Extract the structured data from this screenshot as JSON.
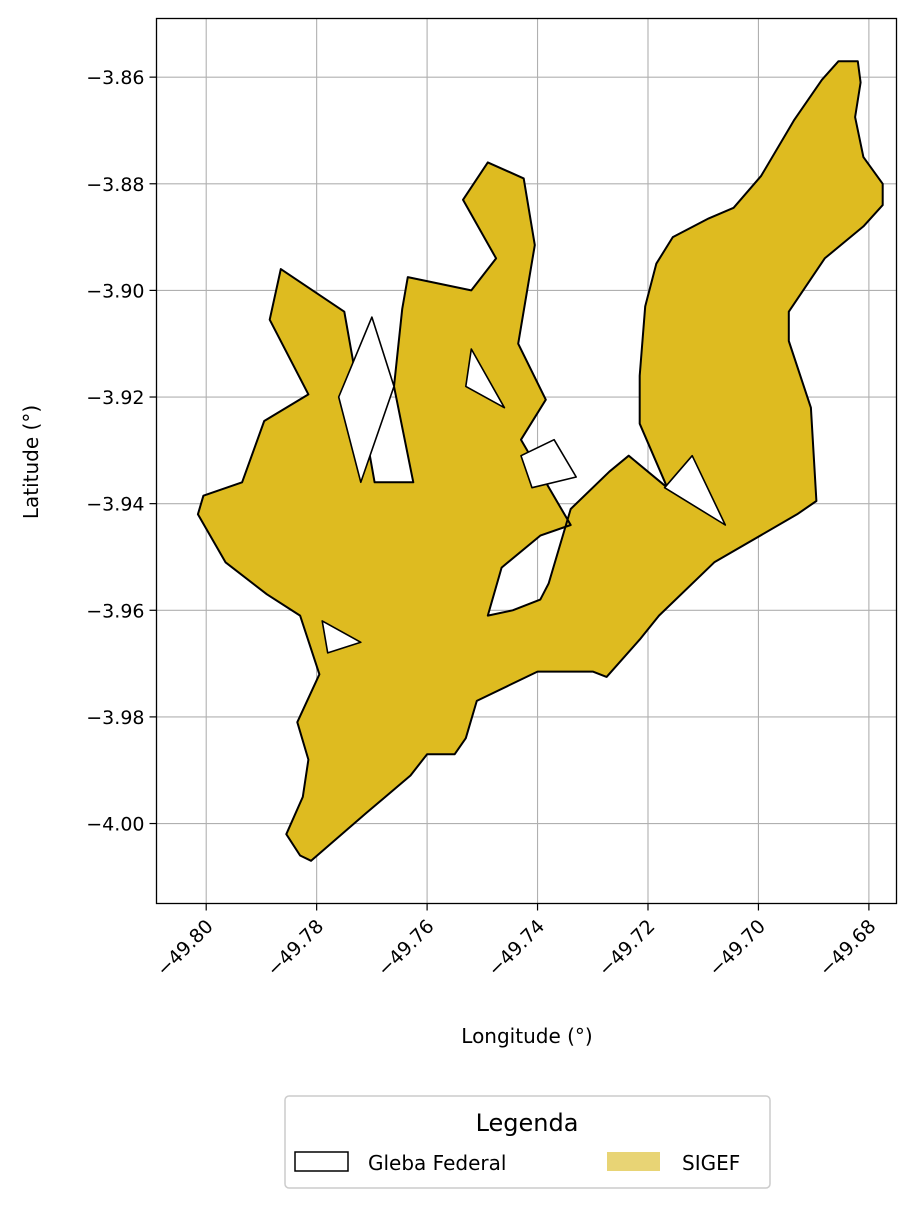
{
  "chart_data": {
    "type": "map",
    "xlabel": "Longitude (°)",
    "ylabel": "Latitude (°)",
    "xlim": [
      -49.809,
      -49.675
    ],
    "ylim": [
      -4.015,
      -3.849
    ],
    "x_ticks": [
      -49.8,
      -49.78,
      -49.76,
      -49.74,
      -49.72,
      -49.7,
      -49.68
    ],
    "x_tick_labels": [
      "−49.80",
      "−49.78",
      "−49.76",
      "−49.74",
      "−49.72",
      "−49.70",
      "−49.68"
    ],
    "y_ticks": [
      -3.86,
      -3.88,
      -3.9,
      -3.92,
      -3.94,
      -3.96,
      -3.98,
      -4.0
    ],
    "y_tick_labels": [
      "−3.86",
      "−3.88",
      "−3.90",
      "−3.92",
      "−3.94",
      "−3.96",
      "−3.98",
      "−4.00"
    ],
    "grid": true,
    "legend": {
      "title": "Legenda",
      "placement": "bottom-center",
      "entries": [
        {
          "label": "Gleba Federal",
          "style": "outline",
          "edge_color": "#000000",
          "fill": "none"
        },
        {
          "label": "SIGEF",
          "style": "filled",
          "fill": "#E8D475"
        }
      ]
    },
    "layers": [
      {
        "name": "SIGEF",
        "fill": "#DEBB20",
        "edge_color": "#000000",
        "outline_lonlat": [
          [
            -49.781,
            -4.007
          ],
          [
            -49.771,
            -3.998
          ],
          [
            -49.763,
            -3.991
          ],
          [
            -49.76,
            -3.987
          ],
          [
            -49.755,
            -3.987
          ],
          [
            -49.753,
            -3.984
          ],
          [
            -49.751,
            -3.977
          ],
          [
            -49.745,
            -3.974
          ],
          [
            -49.74,
            -3.9715
          ],
          [
            -49.73,
            -3.9715
          ],
          [
            -49.7275,
            -3.9725
          ],
          [
            -49.7215,
            -3.9655
          ],
          [
            -49.718,
            -3.961
          ],
          [
            -49.708,
            -3.951
          ],
          [
            -49.693,
            -3.942
          ],
          [
            -49.6895,
            -3.9395
          ],
          [
            -49.6905,
            -3.922
          ],
          [
            -49.6945,
            -3.9095
          ],
          [
            -49.6945,
            -3.904
          ],
          [
            -49.688,
            -3.894
          ],
          [
            -49.681,
            -3.888
          ],
          [
            -49.6775,
            -3.884
          ],
          [
            -49.6775,
            -3.88
          ],
          [
            -49.681,
            -3.875
          ],
          [
            -49.6825,
            -3.8675
          ],
          [
            -49.6815,
            -3.861
          ],
          [
            -49.682,
            -3.857
          ],
          [
            -49.6855,
            -3.857
          ],
          [
            -49.6885,
            -3.8605
          ],
          [
            -49.6935,
            -3.868
          ],
          [
            -49.6995,
            -3.8785
          ],
          [
            -49.7045,
            -3.8845
          ],
          [
            -49.709,
            -3.8865
          ],
          [
            -49.7155,
            -3.89
          ],
          [
            -49.7185,
            -3.895
          ],
          [
            -49.7205,
            -3.903
          ],
          [
            -49.7215,
            -3.916
          ],
          [
            -49.7215,
            -3.925
          ],
          [
            -49.7165,
            -3.937
          ],
          [
            -49.7235,
            -3.931
          ],
          [
            -49.727,
            -3.934
          ],
          [
            -49.734,
            -3.941
          ],
          [
            -49.738,
            -3.955
          ],
          [
            -49.7395,
            -3.958
          ],
          [
            -49.7445,
            -3.96
          ],
          [
            -49.749,
            -3.961
          ],
          [
            -49.7465,
            -3.952
          ],
          [
            -49.7395,
            -3.946
          ],
          [
            -49.734,
            -3.944
          ],
          [
            -49.743,
            -3.928
          ],
          [
            -49.7385,
            -3.9205
          ],
          [
            -49.7435,
            -3.91
          ],
          [
            -49.7405,
            -3.8915
          ],
          [
            -49.7425,
            -3.879
          ],
          [
            -49.749,
            -3.876
          ],
          [
            -49.7535,
            -3.883
          ],
          [
            -49.7475,
            -3.894
          ],
          [
            -49.752,
            -3.9
          ],
          [
            -49.7635,
            -3.8975
          ],
          [
            -49.7645,
            -3.9035
          ],
          [
            -49.766,
            -3.918
          ],
          [
            -49.7625,
            -3.936
          ],
          [
            -49.7695,
            -3.936
          ],
          [
            -49.775,
            -3.904
          ],
          [
            -49.7865,
            -3.896
          ],
          [
            -49.7885,
            -3.9055
          ],
          [
            -49.7815,
            -3.9195
          ],
          [
            -49.7895,
            -3.9245
          ],
          [
            -49.7935,
            -3.936
          ],
          [
            -49.8005,
            -3.9385
          ],
          [
            -49.8015,
            -3.942
          ],
          [
            -49.7965,
            -3.951
          ],
          [
            -49.789,
            -3.957
          ],
          [
            -49.783,
            -3.961
          ],
          [
            -49.7795,
            -3.972
          ],
          [
            -49.7835,
            -3.981
          ],
          [
            -49.7815,
            -3.988
          ],
          [
            -49.7825,
            -3.995
          ],
          [
            -49.7855,
            -4.002
          ],
          [
            -49.783,
            -4.006
          ],
          [
            -49.781,
            -4.007
          ]
        ]
      }
    ]
  }
}
